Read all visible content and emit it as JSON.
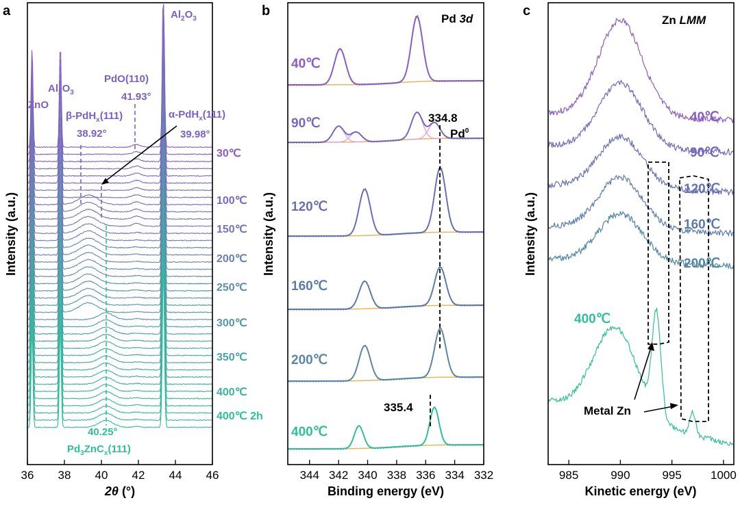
{
  "chart_data": [
    {
      "panel": "a",
      "type": "line",
      "xlabel": "2θ (°)",
      "ylabel": "Intensity (a.u.)",
      "xlim": [
        36,
        46
      ],
      "xticks": [
        "36",
        "38",
        "40",
        "42",
        "44",
        "46"
      ],
      "n_scans": 40,
      "color_top": "#8a5cc4",
      "color_bottom": "#2fbf9a",
      "temperature_labels": [
        "30℃",
        "100℃",
        "150℃",
        "200℃",
        "250℃",
        "300℃",
        "350℃",
        "400℃",
        "400℃ 2h"
      ],
      "peaks": [
        {
          "label": "ZnO",
          "x": 36.25
        },
        {
          "label": "Al₂O₃",
          "x": 37.78
        },
        {
          "label": "Al₂O₃",
          "x": 43.35
        }
      ],
      "annotations": [
        {
          "label": "β-PdHₓ(111)",
          "value": "38.92°",
          "x": 38.92
        },
        {
          "label": "PdO(110)",
          "value": "41.93°",
          "x": 41.93
        },
        {
          "label": "α-PdHₓ(111)",
          "value": "39.98°",
          "x": 39.98
        },
        {
          "label": "Pd₃ZnCₓ(111)",
          "value": "40.25°",
          "x": 40.25
        }
      ]
    },
    {
      "panel": "b",
      "type": "line",
      "title": "Pd 3d",
      "xlabel": "Binding energy (eV)",
      "ylabel": "Intensity (a.u.)",
      "xlim": [
        345.5,
        332
      ],
      "xticks": [
        "344",
        "342",
        "340",
        "338",
        "336",
        "334",
        "332"
      ],
      "series": [
        {
          "name": "40℃",
          "peaks_eV": [
            341.9,
            336.6
          ],
          "color": "#8a5cc4"
        },
        {
          "name": "90℃",
          "peaks_eV": [
            342.0,
            340.8,
            336.6,
            335.4
          ],
          "color": "#7a66c0"
        },
        {
          "name": "120℃",
          "peaks_eV": [
            340.2,
            335.0
          ],
          "color": "#6670b4"
        },
        {
          "name": "160℃",
          "peaks_eV": [
            340.2,
            335.0
          ],
          "color": "#5a7aae"
        },
        {
          "name": "200℃",
          "peaks_eV": [
            340.2,
            335.0
          ],
          "color": "#5a86a8"
        },
        {
          "name": "400℃",
          "peaks_eV": [
            340.6,
            335.4
          ],
          "color": "#2fbf9a"
        }
      ],
      "annotations": [
        {
          "label": "334.8",
          "x": 334.8
        },
        {
          "label": "Pd⁰"
        },
        {
          "label": "335.4",
          "x": 335.4
        }
      ]
    },
    {
      "panel": "c",
      "type": "line",
      "title": "Zn LMM",
      "xlabel": "Kinetic energy (eV)",
      "ylabel": "Intensity (a.u.)",
      "xlim": [
        983,
        1001
      ],
      "xticks": [
        "985",
        "990",
        "995",
        "1000"
      ],
      "series": [
        {
          "name": "40℃",
          "color": "#8a5cc4"
        },
        {
          "name": "90℃",
          "color": "#7068bc"
        },
        {
          "name": "120℃",
          "color": "#6670b4"
        },
        {
          "name": "160℃",
          "color": "#5a7aae"
        },
        {
          "name": "200℃",
          "color": "#4f86a6"
        },
        {
          "name": "400℃",
          "color": "#2fbf9a"
        }
      ],
      "annotations": [
        {
          "label": "Metal Zn"
        }
      ]
    }
  ],
  "panels": {
    "a": {
      "letter": "a",
      "xlabel_main": "2θ",
      "xlabel_unit": " (°)",
      "ylabel": "Intensity (a.u.)"
    },
    "b": {
      "letter": "b",
      "title_main": "Pd ",
      "title_italic": "3d",
      "xlabel": "Binding energy (eV)",
      "ylabel": "Intensity (a.u.)"
    },
    "c": {
      "letter": "c",
      "title_main": "Zn ",
      "title_italic": "LMM",
      "xlabel": "Kinetic energy (eV)",
      "ylabel": "Intensity (a.u.)"
    }
  },
  "labels_a": {
    "zno": "ZnO",
    "al2o3_base": "Al",
    "al2o3_sub": "2",
    "al2o3_end": "O",
    "al2o3_sub2": "3",
    "pdo": "PdO(110)",
    "pdo_val": "41.93°",
    "beta_pre": "β-PdH",
    "beta_sub": "x",
    "beta_post": "(111)",
    "beta_val": "38.92°",
    "alpha_pre": "α-PdH",
    "alpha_sub": "x",
    "alpha_post": "(111)",
    "alpha_val": "39.98°",
    "pdzn_val": "40.25°",
    "pdzn_pre": "Pd",
    "pdzn_sub1": "3",
    "pdzn_mid": "ZnC",
    "pdzn_sub2": "x",
    "pdzn_post": "(111)"
  },
  "labels_b": {
    "v334": "334.8",
    "pd0_base": "Pd",
    "pd0_sup": "0",
    "v335": "335.4"
  },
  "labels_c": {
    "metal_zn": "Metal Zn"
  }
}
